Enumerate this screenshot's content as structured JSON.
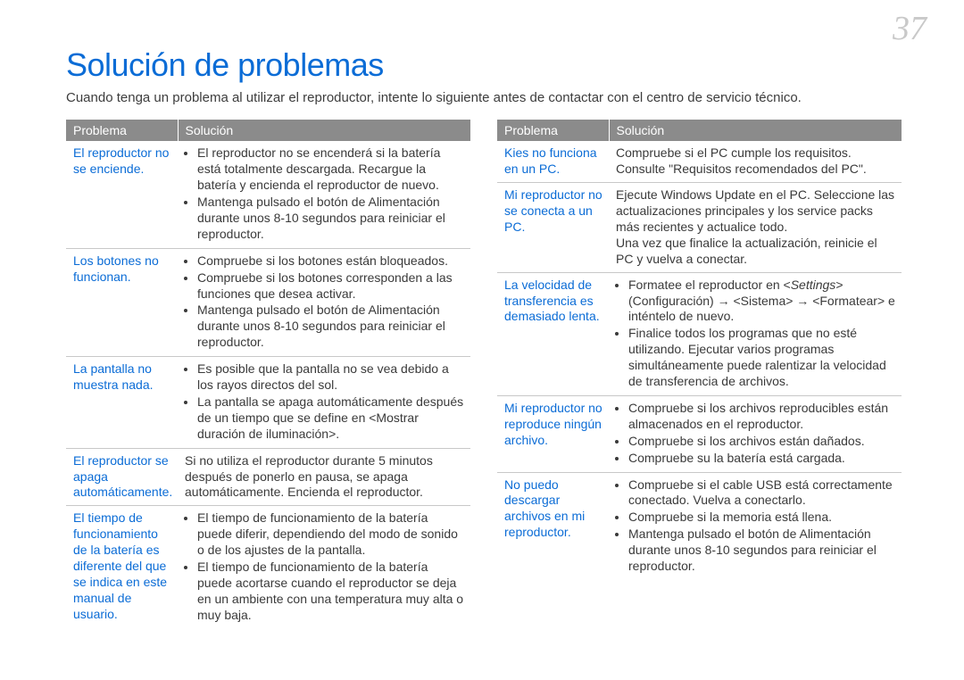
{
  "page_number": "37",
  "title": "Solución de problemas",
  "intro": "Cuando tenga un problema al utilizar el reproductor, intente lo siguiente antes de contactar con el centro de servicio técnico.",
  "header_problem": "Problema",
  "header_solution": "Solución",
  "left": [
    {
      "p": "El reproductor no se enciende.",
      "s": [
        "El reproductor no se encenderá si la batería está totalmente descargada. Recargue la batería y encienda el reproductor de nuevo.",
        "Mantenga pulsado el botón de Alimentación durante unos 8-10 segundos para reiniciar el reproductor."
      ],
      "bul": true
    },
    {
      "p": "Los botones no funcionan.",
      "s": [
        "Compruebe si los botones están bloqueados.",
        "Compruebe si los botones corresponden a las funciones que desea activar.",
        "Mantenga pulsado el botón de Alimentación durante unos 8-10 segundos para reiniciar el reproductor."
      ],
      "bul": true
    },
    {
      "p": "La pantalla no muestra nada.",
      "s": [
        "Es posible que la pantalla no se vea debido a los rayos directos del sol.",
        "La pantalla se apaga automáticamente después de un tiempo que se define en <Mostrar duración de iluminación>."
      ],
      "bul": true
    },
    {
      "p": "El reproductor se apaga automáticamente.",
      "s": [
        "Si no utiliza el reproductor durante 5 minutos después de ponerlo en pausa, se apaga automáticamente. Encienda el reproductor."
      ],
      "bul": false
    },
    {
      "p": "El tiempo de funcionamiento de la batería es diferente del que se indica en este manual de usuario.",
      "s": [
        "El tiempo de funcionamiento de la batería puede diferir, dependiendo del modo de sonido o de los ajustes de la pantalla.",
        "El tiempo de funcionamiento de la batería puede acortarse cuando el reproductor se deja en un ambiente con una temperatura muy alta o muy baja."
      ],
      "bul": true
    }
  ],
  "right": [
    {
      "p": "Kies no funciona en un PC.",
      "s": [
        "Compruebe si el PC cumple los requisitos.",
        "Consulte \"Requisitos recomendados del PC\"."
      ],
      "bul": false
    },
    {
      "p": "Mi reproductor no se conecta a un PC.",
      "s": [
        "Ejecute Windows Update en el PC. Seleccione las actualizaciones principales y los service packs más recientes y actualice todo.",
        "Una vez que finalice la actualización, reinicie el PC y vuelva a conectar."
      ],
      "bul": false
    },
    {
      "p": "La velocidad de transferencia es demasiado lenta.",
      "s": [
        "Formatee el reproductor en <Settings> (Configuración) → <Sistema> → <Formatear> e inténtelo de nuevo.",
        "Finalice todos los programas que no esté utilizando. Ejecutar varios programas simultáneamente puede ralentizar la velocidad de transferencia de archivos."
      ],
      "bul": true
    },
    {
      "p": "Mi reproductor no reproduce ningún archivo.",
      "s": [
        "Compruebe si los archivos reproducibles están almacenados en el reproductor.",
        "Compruebe si los archivos están dañados.",
        "Compruebe su la batería está cargada."
      ],
      "bul": true
    },
    {
      "p": "No puedo descargar archivos en mi reproductor.",
      "s": [
        "Compruebe si el cable USB está correctamente conectado. Vuelva a conectarlo.",
        "Compruebe si la memoria está llena.",
        "Mantenga pulsado el botón de Alimentación durante unos 8-10 segundos para reiniciar el reproductor."
      ],
      "bul": true
    }
  ]
}
